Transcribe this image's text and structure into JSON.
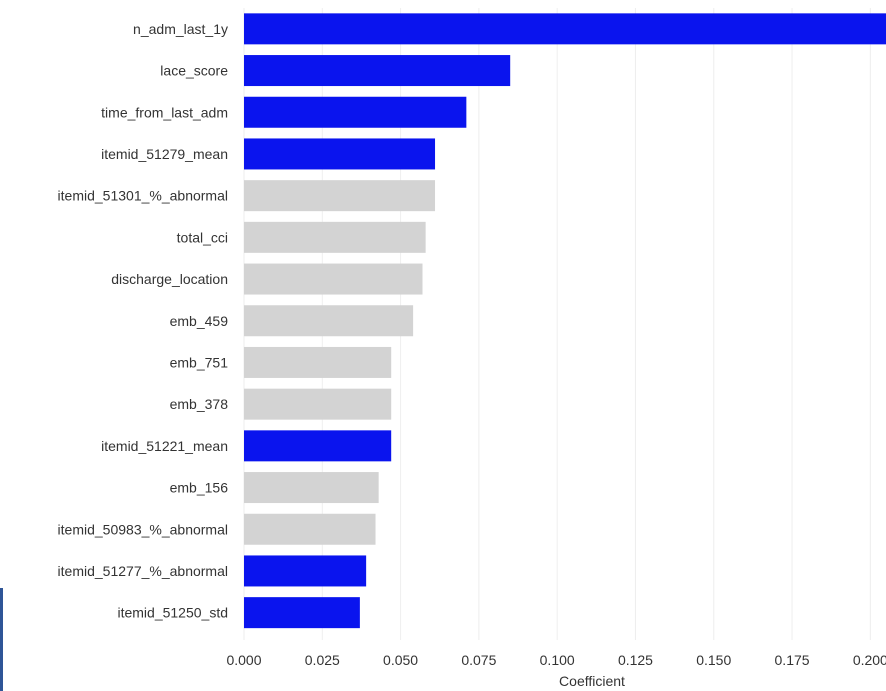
{
  "chart_data": {
    "type": "bar",
    "orientation": "horizontal",
    "title": "",
    "xlabel": "Coefficient",
    "ylabel": "",
    "xlim": [
      0.0,
      0.205
    ],
    "xticks": [
      "0.000",
      "0.025",
      "0.050",
      "0.075",
      "0.100",
      "0.125",
      "0.150",
      "0.175",
      "0.200"
    ],
    "grid": "vertical-light",
    "colors": {
      "highlight": "#0a14ee",
      "default": "#d3d3d3",
      "grid": "#eeeeee"
    },
    "categories": [
      "n_adm_last_1y",
      "lace_score",
      "time_from_last_adm",
      "itemid_51279_mean",
      "itemid_51301_%_abnormal",
      "total_cci",
      "discharge_location",
      "emb_459",
      "emb_751",
      "emb_378",
      "itemid_51221_mean",
      "emb_156",
      "itemid_50983_%_abnormal",
      "itemid_51277_%_abnormal",
      "itemid_51250_std"
    ],
    "values": [
      0.205,
      0.085,
      0.071,
      0.061,
      0.061,
      0.058,
      0.057,
      0.054,
      0.047,
      0.047,
      0.047,
      0.043,
      0.042,
      0.039,
      0.037
    ],
    "highlighted": [
      true,
      true,
      true,
      true,
      false,
      false,
      false,
      false,
      false,
      false,
      true,
      false,
      false,
      true,
      true
    ]
  }
}
